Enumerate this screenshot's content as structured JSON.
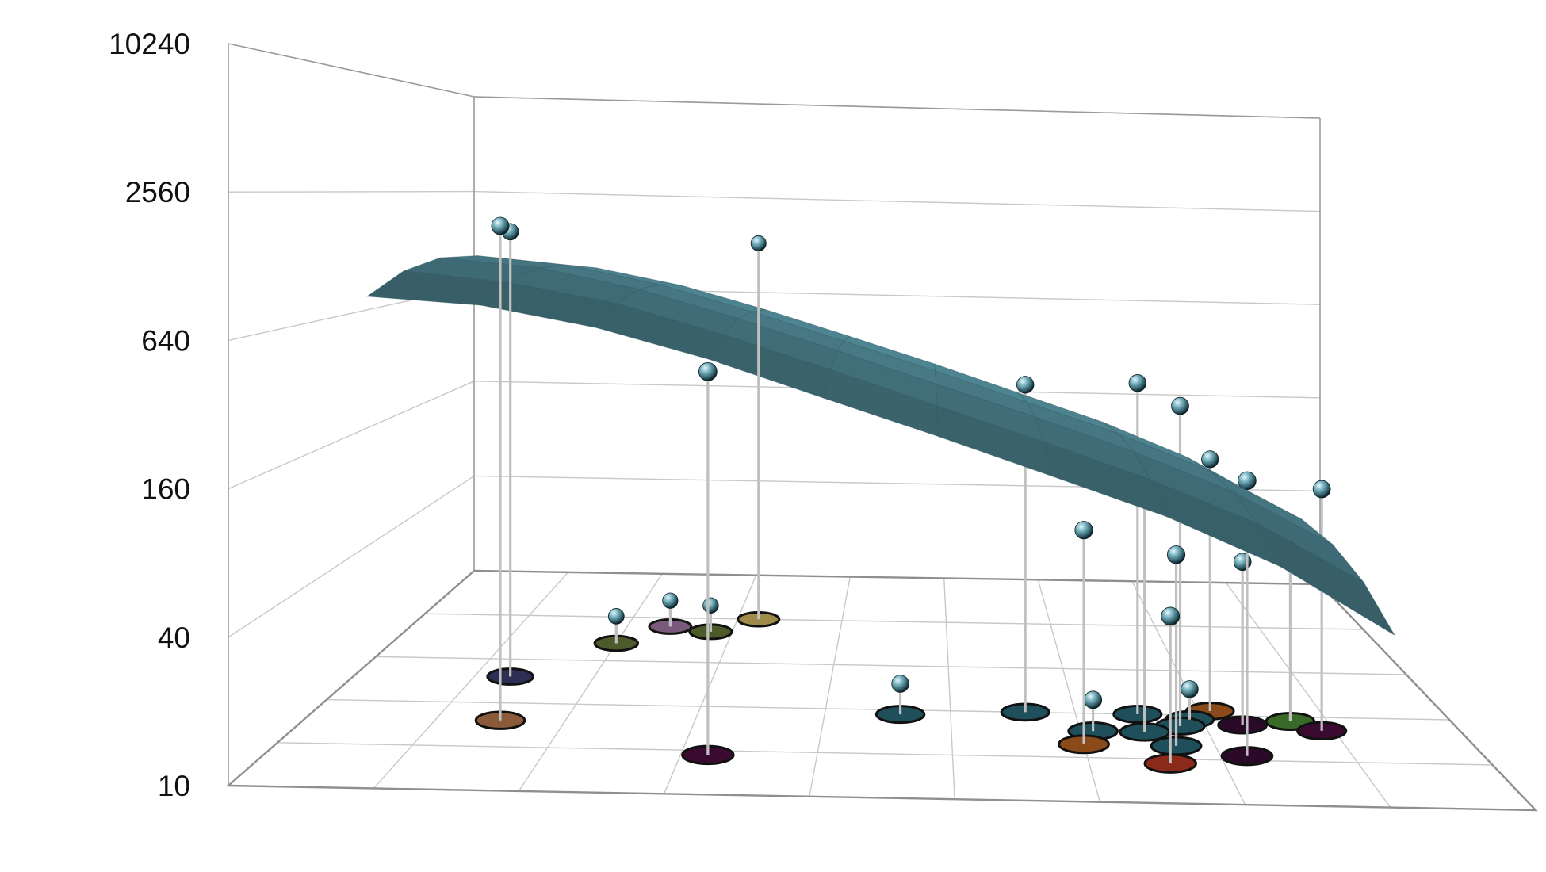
{
  "chart_data": {
    "type": "scatter3d-surface",
    "z_axis": {
      "scale": "log",
      "ticks": [
        10240,
        2560,
        640,
        160,
        40,
        10
      ],
      "tick_labels": [
        "10240",
        "2560",
        "640",
        "160",
        "40",
        "10"
      ],
      "range": [
        10,
        10240
      ]
    },
    "x_axis": {
      "range": [
        0,
        9
      ],
      "tick_labels": []
    },
    "y_axis": {
      "range": [
        0,
        5
      ],
      "tick_labels": []
    },
    "grid": true,
    "surface": {
      "color": "#4f8794",
      "description_points_z": [
        [
          900,
          1100,
          1200,
          1150,
          1000
        ],
        [
          850,
          1000,
          1100,
          1050,
          920
        ],
        [
          700,
          820,
          880,
          840,
          740
        ],
        [
          520,
          600,
          640,
          610,
          540
        ],
        [
          360,
          420,
          450,
          430,
          380
        ],
        [
          250,
          290,
          310,
          300,
          265
        ],
        [
          170,
          200,
          215,
          205,
          180
        ],
        [
          115,
          135,
          145,
          140,
          122
        ],
        [
          70,
          85,
          92,
          88,
          76
        ],
        [
          35,
          45,
          50,
          48,
          40
        ]
      ]
    },
    "points": [
      {
        "x": 1.3,
        "y": 2.6,
        "z": 1700,
        "floor_color": "#2e2e55"
      },
      {
        "x": 1.5,
        "y": 1.6,
        "z": 1900,
        "floor_color": "#8a5a3a"
      },
      {
        "x": 2.0,
        "y": 3.4,
        "z": 14,
        "floor_color": "#4d5a2a"
      },
      {
        "x": 2.4,
        "y": 3.8,
        "z": 14,
        "floor_color": "#7a5a7a"
      },
      {
        "x": 2.8,
        "y": 3.7,
        "z": 14,
        "floor_color": "#4d5a2a"
      },
      {
        "x": 3.2,
        "y": 4.0,
        "z": 1450,
        "floor_color": "#a08a4a"
      },
      {
        "x": 3.2,
        "y": 0.9,
        "z": 480,
        "floor_color": "#3a0a30"
      },
      {
        "x": 4.6,
        "y": 1.9,
        "z": 14,
        "floor_color": "#1f4f5a"
      },
      {
        "x": 5.6,
        "y": 2.0,
        "z": 380,
        "floor_color": "#1f4f5a"
      },
      {
        "x": 6.1,
        "y": 1.6,
        "z": 14,
        "floor_color": "#1f4f5a"
      },
      {
        "x": 6.0,
        "y": 1.3,
        "z": 95,
        "floor_color": "#8a4a1a"
      },
      {
        "x": 6.5,
        "y": 2.0,
        "z": 400,
        "floor_color": "#1f4f5a"
      },
      {
        "x": 6.5,
        "y": 1.6,
        "z": 170,
        "floor_color": "#1f4f5a"
      },
      {
        "x": 6.7,
        "y": 1.3,
        "z": 75,
        "floor_color": "#1f4f5a"
      },
      {
        "x": 6.6,
        "y": 0.9,
        "z": 45,
        "floor_color": "#8a2a1a"
      },
      {
        "x": 6.8,
        "y": 1.75,
        "z": 330,
        "floor_color": "#1f4f5a"
      },
      {
        "x": 6.9,
        "y": 1.9,
        "z": 14,
        "floor_color": "#1f4f5a"
      },
      {
        "x": 7.1,
        "y": 2.1,
        "z": 170,
        "floor_color": "#8a4a1a"
      },
      {
        "x": 7.2,
        "y": 1.1,
        "z": 175,
        "floor_color": "#2a0a28"
      },
      {
        "x": 7.3,
        "y": 1.8,
        "z": 60,
        "floor_color": "#2a0a28"
      },
      {
        "x": 7.7,
        "y": 1.9,
        "z": 75,
        "floor_color": "#3a6a2a"
      },
      {
        "x": 7.9,
        "y": 1.7,
        "z": 140,
        "floor_color": "#3a0a30"
      }
    ]
  }
}
